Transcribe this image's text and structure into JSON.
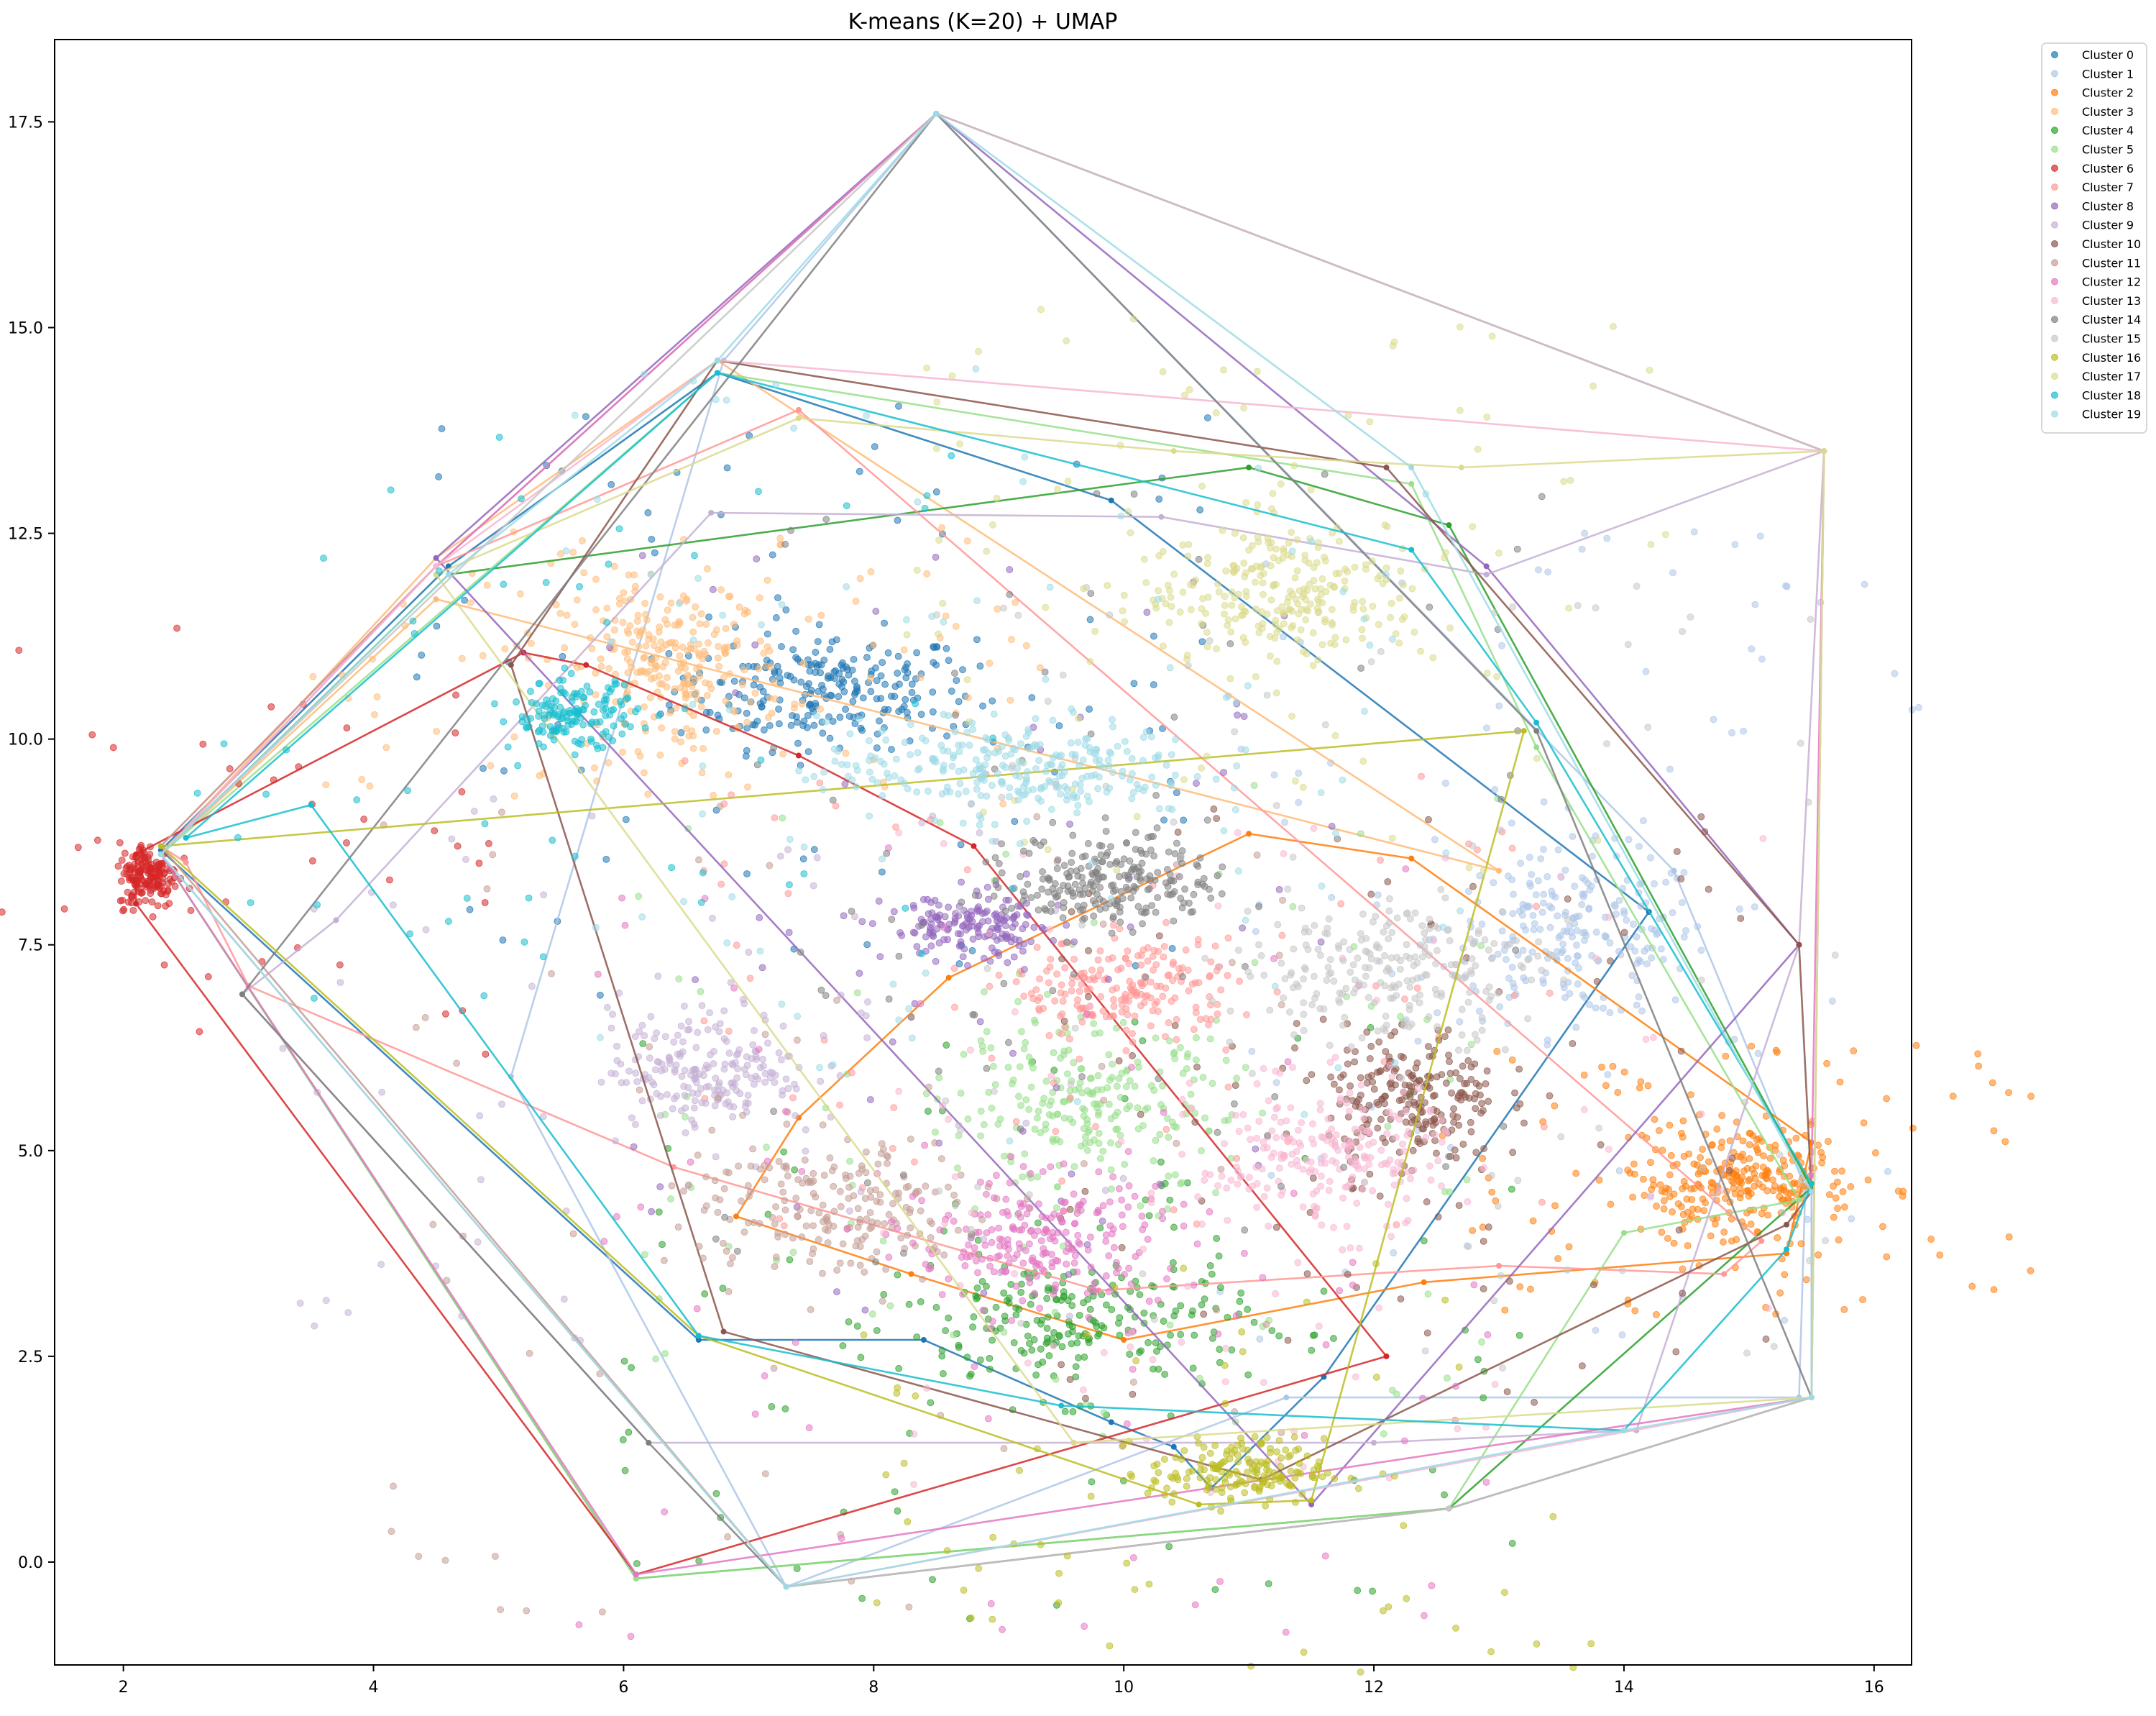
{
  "chart_data": {
    "type": "scatter",
    "title": "K-means (K=20) + UMAP",
    "xlabel": "",
    "ylabel": "",
    "xlim": [
      1.45,
      16.3
    ],
    "ylim": [
      -1.25,
      18.5
    ],
    "x_ticks": [
      2,
      4,
      6,
      8,
      10,
      12,
      14,
      16
    ],
    "y_ticks": [
      0.0,
      2.5,
      5.0,
      7.5,
      10.0,
      12.5,
      15.0,
      17.5
    ],
    "x_tick_labels": [
      "2",
      "4",
      "6",
      "8",
      "10",
      "12",
      "14",
      "16"
    ],
    "y_tick_labels": [
      "0.0",
      "2.5",
      "5.0",
      "7.5",
      "10.0",
      "12.5",
      "15.0",
      "17.5"
    ],
    "grid": false,
    "legend_placement": "outside-top-right",
    "marker_alpha": 0.55,
    "series": [
      {
        "name": "Cluster 0",
        "color": "#1f77b4",
        "center": [
          7.6,
          10.6
        ],
        "spread": [
          0.6,
          0.35
        ],
        "count": 240,
        "hull": [
          [
            6.75,
            14.45
          ],
          [
            9.9,
            12.9
          ],
          [
            14.2,
            7.9
          ],
          [
            11.6,
            2.25
          ],
          [
            10.7,
            0.9
          ],
          [
            10.4,
            1.4
          ],
          [
            9.9,
            1.7
          ],
          [
            8.4,
            2.7
          ],
          [
            6.6,
            2.7
          ],
          [
            2.3,
            8.65
          ],
          [
            4.6,
            12.1
          ]
        ]
      },
      {
        "name": "Cluster 1",
        "color": "#aec7e8",
        "center": [
          13.6,
          7.6
        ],
        "spread": [
          0.55,
          0.5
        ],
        "count": 230,
        "hull": [
          [
            8.5,
            17.6
          ],
          [
            14.4,
            8.4
          ],
          [
            15.45,
            4.55
          ],
          [
            15.4,
            2.0
          ],
          [
            11.3,
            2.0
          ],
          [
            7.3,
            -0.3
          ],
          [
            5.1,
            5.9
          ],
          [
            6.8,
            14.6
          ]
        ]
      },
      {
        "name": "Cluster 2",
        "color": "#ff7f0e",
        "center": [
          14.9,
          4.6
        ],
        "spread": [
          0.45,
          0.35
        ],
        "count": 260,
        "hull": [
          [
            11.0,
            8.85
          ],
          [
            12.3,
            8.55
          ],
          [
            15.5,
            5.1
          ],
          [
            15.3,
            3.75
          ],
          [
            12.4,
            3.4
          ],
          [
            10.0,
            2.7
          ],
          [
            8.3,
            3.5
          ],
          [
            6.9,
            4.2
          ],
          [
            7.4,
            5.4
          ],
          [
            8.6,
            7.1
          ]
        ]
      },
      {
        "name": "Cluster 3",
        "color": "#ffbb78",
        "center": [
          6.4,
          10.9
        ],
        "spread": [
          0.45,
          0.5
        ],
        "count": 250,
        "hull": [
          [
            6.75,
            14.6
          ],
          [
            13.0,
            8.4
          ],
          [
            4.5,
            11.7
          ],
          [
            2.3,
            8.6
          ],
          [
            4.5,
            12.2
          ]
        ]
      },
      {
        "name": "Cluster 4",
        "color": "#2ca02c",
        "center": [
          9.6,
          2.9
        ],
        "spread": [
          0.7,
          0.45
        ],
        "count": 230,
        "hull": [
          [
            4.6,
            12.0
          ],
          [
            11.0,
            13.3
          ],
          [
            12.6,
            12.6
          ],
          [
            15.5,
            4.55
          ],
          [
            12.6,
            0.65
          ],
          [
            6.1,
            -0.2
          ],
          [
            2.3,
            8.6
          ]
        ]
      },
      {
        "name": "Cluster 5",
        "color": "#98df8a",
        "center": [
          9.7,
          5.5
        ],
        "spread": [
          0.55,
          0.5
        ],
        "count": 230,
        "hull": [
          [
            6.75,
            14.45
          ],
          [
            12.3,
            13.1
          ],
          [
            13.3,
            9.9
          ],
          [
            15.4,
            4.4
          ],
          [
            14.0,
            4.0
          ],
          [
            12.6,
            0.65
          ],
          [
            6.1,
            -0.2
          ],
          [
            2.3,
            8.6
          ]
        ]
      },
      {
        "name": "Cluster 6",
        "color": "#d62728",
        "center": [
          2.2,
          8.35
        ],
        "spread": [
          0.12,
          0.2
        ],
        "count": 170,
        "hull": [
          [
            5.2,
            11.05
          ],
          [
            5.7,
            10.9
          ],
          [
            7.4,
            9.8
          ],
          [
            8.8,
            8.7
          ],
          [
            12.1,
            2.5
          ],
          [
            6.1,
            -0.15
          ],
          [
            2.1,
            8.0
          ],
          [
            2.1,
            8.6
          ]
        ]
      },
      {
        "name": "Cluster 7",
        "color": "#ff9896",
        "center": [
          10.0,
          6.95
        ],
        "spread": [
          0.45,
          0.3
        ],
        "count": 200,
        "hull": [
          [
            7.4,
            14.0
          ],
          [
            4.5,
            12.1
          ],
          [
            2.3,
            8.7
          ],
          [
            2.5,
            8.5
          ],
          [
            3.0,
            7.0
          ],
          [
            6.4,
            4.8
          ],
          [
            9.8,
            3.3
          ],
          [
            13.0,
            3.6
          ],
          [
            14.8,
            3.5
          ],
          [
            15.1,
            3.9
          ]
        ]
      },
      {
        "name": "Cluster 8",
        "color": "#9467bd",
        "center": [
          8.8,
          7.7
        ],
        "spread": [
          0.35,
          0.2
        ],
        "count": 170,
        "hull": [
          [
            8.5,
            17.6
          ],
          [
            12.9,
            12.1
          ],
          [
            15.4,
            7.5
          ],
          [
            11.5,
            0.7
          ],
          [
            4.5,
            12.2
          ]
        ]
      },
      {
        "name": "Cluster 9",
        "color": "#c5b0d5",
        "center": [
          6.7,
          6.0
        ],
        "spread": [
          0.4,
          0.35
        ],
        "count": 200,
        "hull": [
          [
            6.7,
            12.75
          ],
          [
            10.3,
            12.7
          ],
          [
            12.9,
            12.0
          ],
          [
            15.6,
            13.5
          ],
          [
            15.4,
            7.5
          ],
          [
            14.1,
            1.6
          ],
          [
            12.0,
            1.45
          ],
          [
            9.6,
            1.45
          ],
          [
            6.2,
            1.45
          ],
          [
            2.95,
            6.9
          ],
          [
            3.7,
            7.8
          ]
        ]
      },
      {
        "name": "Cluster 10",
        "color": "#8c564b",
        "center": [
          12.3,
          5.6
        ],
        "spread": [
          0.35,
          0.45
        ],
        "count": 230,
        "hull": [
          [
            6.75,
            14.6
          ],
          [
            12.1,
            13.3
          ],
          [
            15.4,
            7.5
          ],
          [
            15.5,
            4.5
          ],
          [
            15.3,
            4.1
          ],
          [
            11.1,
            1.0
          ],
          [
            6.8,
            2.8
          ],
          [
            5.1,
            10.9
          ]
        ]
      },
      {
        "name": "Cluster 11",
        "color": "#c49c94",
        "center": [
          7.7,
          4.3
        ],
        "spread": [
          0.6,
          0.45
        ],
        "count": 200,
        "hull": [
          [
            8.5,
            17.6
          ],
          [
            15.6,
            13.5
          ],
          [
            15.5,
            2.0
          ],
          [
            12.6,
            0.65
          ],
          [
            7.3,
            -0.3
          ],
          [
            2.3,
            8.7
          ],
          [
            4.5,
            12.1
          ]
        ]
      },
      {
        "name": "Cluster 12",
        "color": "#e377c2",
        "center": [
          9.3,
          3.9
        ],
        "spread": [
          0.5,
          0.4
        ],
        "count": 220,
        "hull": [
          [
            8.5,
            17.6
          ],
          [
            15.6,
            13.5
          ],
          [
            15.5,
            4.7
          ],
          [
            15.5,
            2.0
          ],
          [
            6.1,
            -0.15
          ],
          [
            2.3,
            8.6
          ],
          [
            4.5,
            12.1
          ]
        ]
      },
      {
        "name": "Cluster 13",
        "color": "#f7b6d2",
        "center": [
          11.6,
          4.9
        ],
        "spread": [
          0.5,
          0.45
        ],
        "count": 220,
        "hull": [
          [
            6.75,
            14.6
          ],
          [
            15.6,
            13.5
          ],
          [
            15.5,
            2.0
          ],
          [
            7.3,
            -0.3
          ],
          [
            2.3,
            8.6
          ],
          [
            4.5,
            12.1
          ]
        ]
      },
      {
        "name": "Cluster 14",
        "color": "#7f7f7f",
        "center": [
          9.9,
          8.3
        ],
        "spread": [
          0.4,
          0.3
        ],
        "count": 230,
        "hull": [
          [
            8.5,
            17.6
          ],
          [
            13.3,
            10.1
          ],
          [
            15.5,
            2.0
          ],
          [
            12.6,
            0.65
          ],
          [
            7.3,
            -0.3
          ],
          [
            6.2,
            1.45
          ],
          [
            2.95,
            6.9
          ]
        ]
      },
      {
        "name": "Cluster 15",
        "color": "#c7c7c7",
        "center": [
          12.1,
          7.2
        ],
        "spread": [
          0.6,
          0.45
        ],
        "count": 230,
        "hull": [
          [
            8.5,
            17.6
          ],
          [
            15.6,
            13.5
          ],
          [
            15.5,
            2.0
          ],
          [
            12.6,
            0.65
          ],
          [
            7.3,
            -0.3
          ],
          [
            2.3,
            8.6
          ]
        ]
      },
      {
        "name": "Cluster 16",
        "color": "#bcbd22",
        "center": [
          10.9,
          1.1
        ],
        "spread": [
          0.35,
          0.2
        ],
        "count": 170,
        "hull": [
          [
            13.2,
            10.1
          ],
          [
            11.5,
            0.75
          ],
          [
            10.6,
            0.7
          ],
          [
            6.6,
            2.75
          ],
          [
            2.3,
            8.7
          ]
        ]
      },
      {
        "name": "Cluster 17",
        "color": "#dbdb8d",
        "center": [
          11.3,
          11.8
        ],
        "spread": [
          0.6,
          0.45
        ],
        "count": 250,
        "hull": [
          [
            7.4,
            13.9
          ],
          [
            10.4,
            13.5
          ],
          [
            12.7,
            13.3
          ],
          [
            15.6,
            13.5
          ],
          [
            15.5,
            2.0
          ],
          [
            9.6,
            1.45
          ],
          [
            4.5,
            12.0
          ]
        ]
      },
      {
        "name": "Cluster 18",
        "color": "#17becf",
        "center": [
          5.6,
          10.3
        ],
        "spread": [
          0.25,
          0.2
        ],
        "count": 150,
        "hull": [
          [
            6.75,
            14.45
          ],
          [
            12.3,
            12.3
          ],
          [
            13.3,
            10.2
          ],
          [
            15.5,
            4.6
          ],
          [
            15.3,
            3.8
          ],
          [
            14.0,
            1.6
          ],
          [
            9.5,
            1.9
          ],
          [
            6.6,
            2.75
          ],
          [
            3.5,
            9.2
          ],
          [
            2.5,
            8.8
          ]
        ]
      },
      {
        "name": "Cluster 19",
        "color": "#9edae5",
        "center": [
          9.1,
          9.65
        ],
        "spread": [
          0.75,
          0.3
        ],
        "count": 270,
        "hull": [
          [
            6.75,
            14.6
          ],
          [
            8.5,
            17.6
          ],
          [
            12.3,
            13.3
          ],
          [
            15.5,
            4.5
          ],
          [
            15.5,
            2.0
          ],
          [
            14.0,
            1.6
          ],
          [
            7.3,
            -0.3
          ],
          [
            2.3,
            8.6
          ],
          [
            4.6,
            12.0
          ]
        ]
      }
    ]
  }
}
